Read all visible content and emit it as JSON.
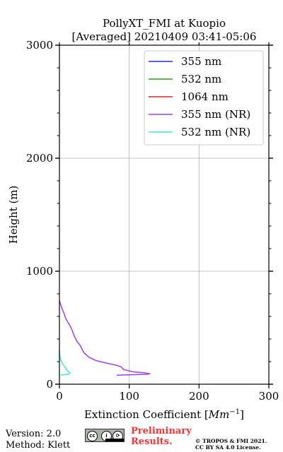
{
  "chart_data": {
    "type": "line",
    "title": "PollyXT_FMI at Kuopio",
    "subtitle": "[Averaged] 20210409 03:41-05:06",
    "xlabel": "Extinction Coefficient [Mm⁻¹]",
    "ylabel": "Height (m)",
    "xlim": [
      0,
      300
    ],
    "ylim": [
      0,
      3000
    ],
    "xticks": [
      "0",
      "100",
      "200",
      "300"
    ],
    "yticks": [
      "0",
      "1000",
      "2000",
      "3000"
    ],
    "grid": true,
    "legend_position": "top-right",
    "series": [
      {
        "name": "355 nm",
        "color": "#2a2acf",
        "points": []
      },
      {
        "name": "532 nm",
        "color": "#2ca02c",
        "points": []
      },
      {
        "name": "1064 nm",
        "color": "#d62728",
        "points": []
      },
      {
        "name": "355 nm (NR)",
        "color": "#a040f0",
        "points": [
          [
            82,
            80
          ],
          [
            95,
            82
          ],
          [
            110,
            85
          ],
          [
            125,
            88
          ],
          [
            130,
            92
          ],
          [
            122,
            100
          ],
          [
            105,
            110
          ],
          [
            92,
            130
          ],
          [
            88,
            155
          ],
          [
            80,
            170
          ],
          [
            65,
            190
          ],
          [
            52,
            210
          ],
          [
            42,
            240
          ],
          [
            35,
            280
          ],
          [
            30,
            340
          ],
          [
            25,
            380
          ],
          [
            21,
            430
          ],
          [
            18,
            480
          ],
          [
            15,
            520
          ],
          [
            12,
            550
          ],
          [
            9,
            580
          ],
          [
            7,
            620
          ],
          [
            5,
            650
          ],
          [
            2,
            700
          ],
          [
            0,
            740
          ]
        ]
      },
      {
        "name": "532 nm (NR)",
        "color": "#40e8c8",
        "points": [
          [
            2,
            80
          ],
          [
            8,
            85
          ],
          [
            14,
            90
          ],
          [
            15,
            100
          ],
          [
            11,
            120
          ],
          [
            8,
            150
          ],
          [
            5,
            180
          ],
          [
            2,
            210
          ],
          [
            1,
            240
          ],
          [
            0,
            280
          ],
          [
            0,
            300
          ]
        ]
      }
    ]
  },
  "footer": {
    "version": "Version: 2.0",
    "method": "Method: Klett",
    "preliminary_line1": "Preliminary",
    "preliminary_line2": "Results.",
    "copyright_line1": "© TROPOS & FMI 2021.",
    "copyright_line2": "CC BY SA 4.0 License."
  }
}
